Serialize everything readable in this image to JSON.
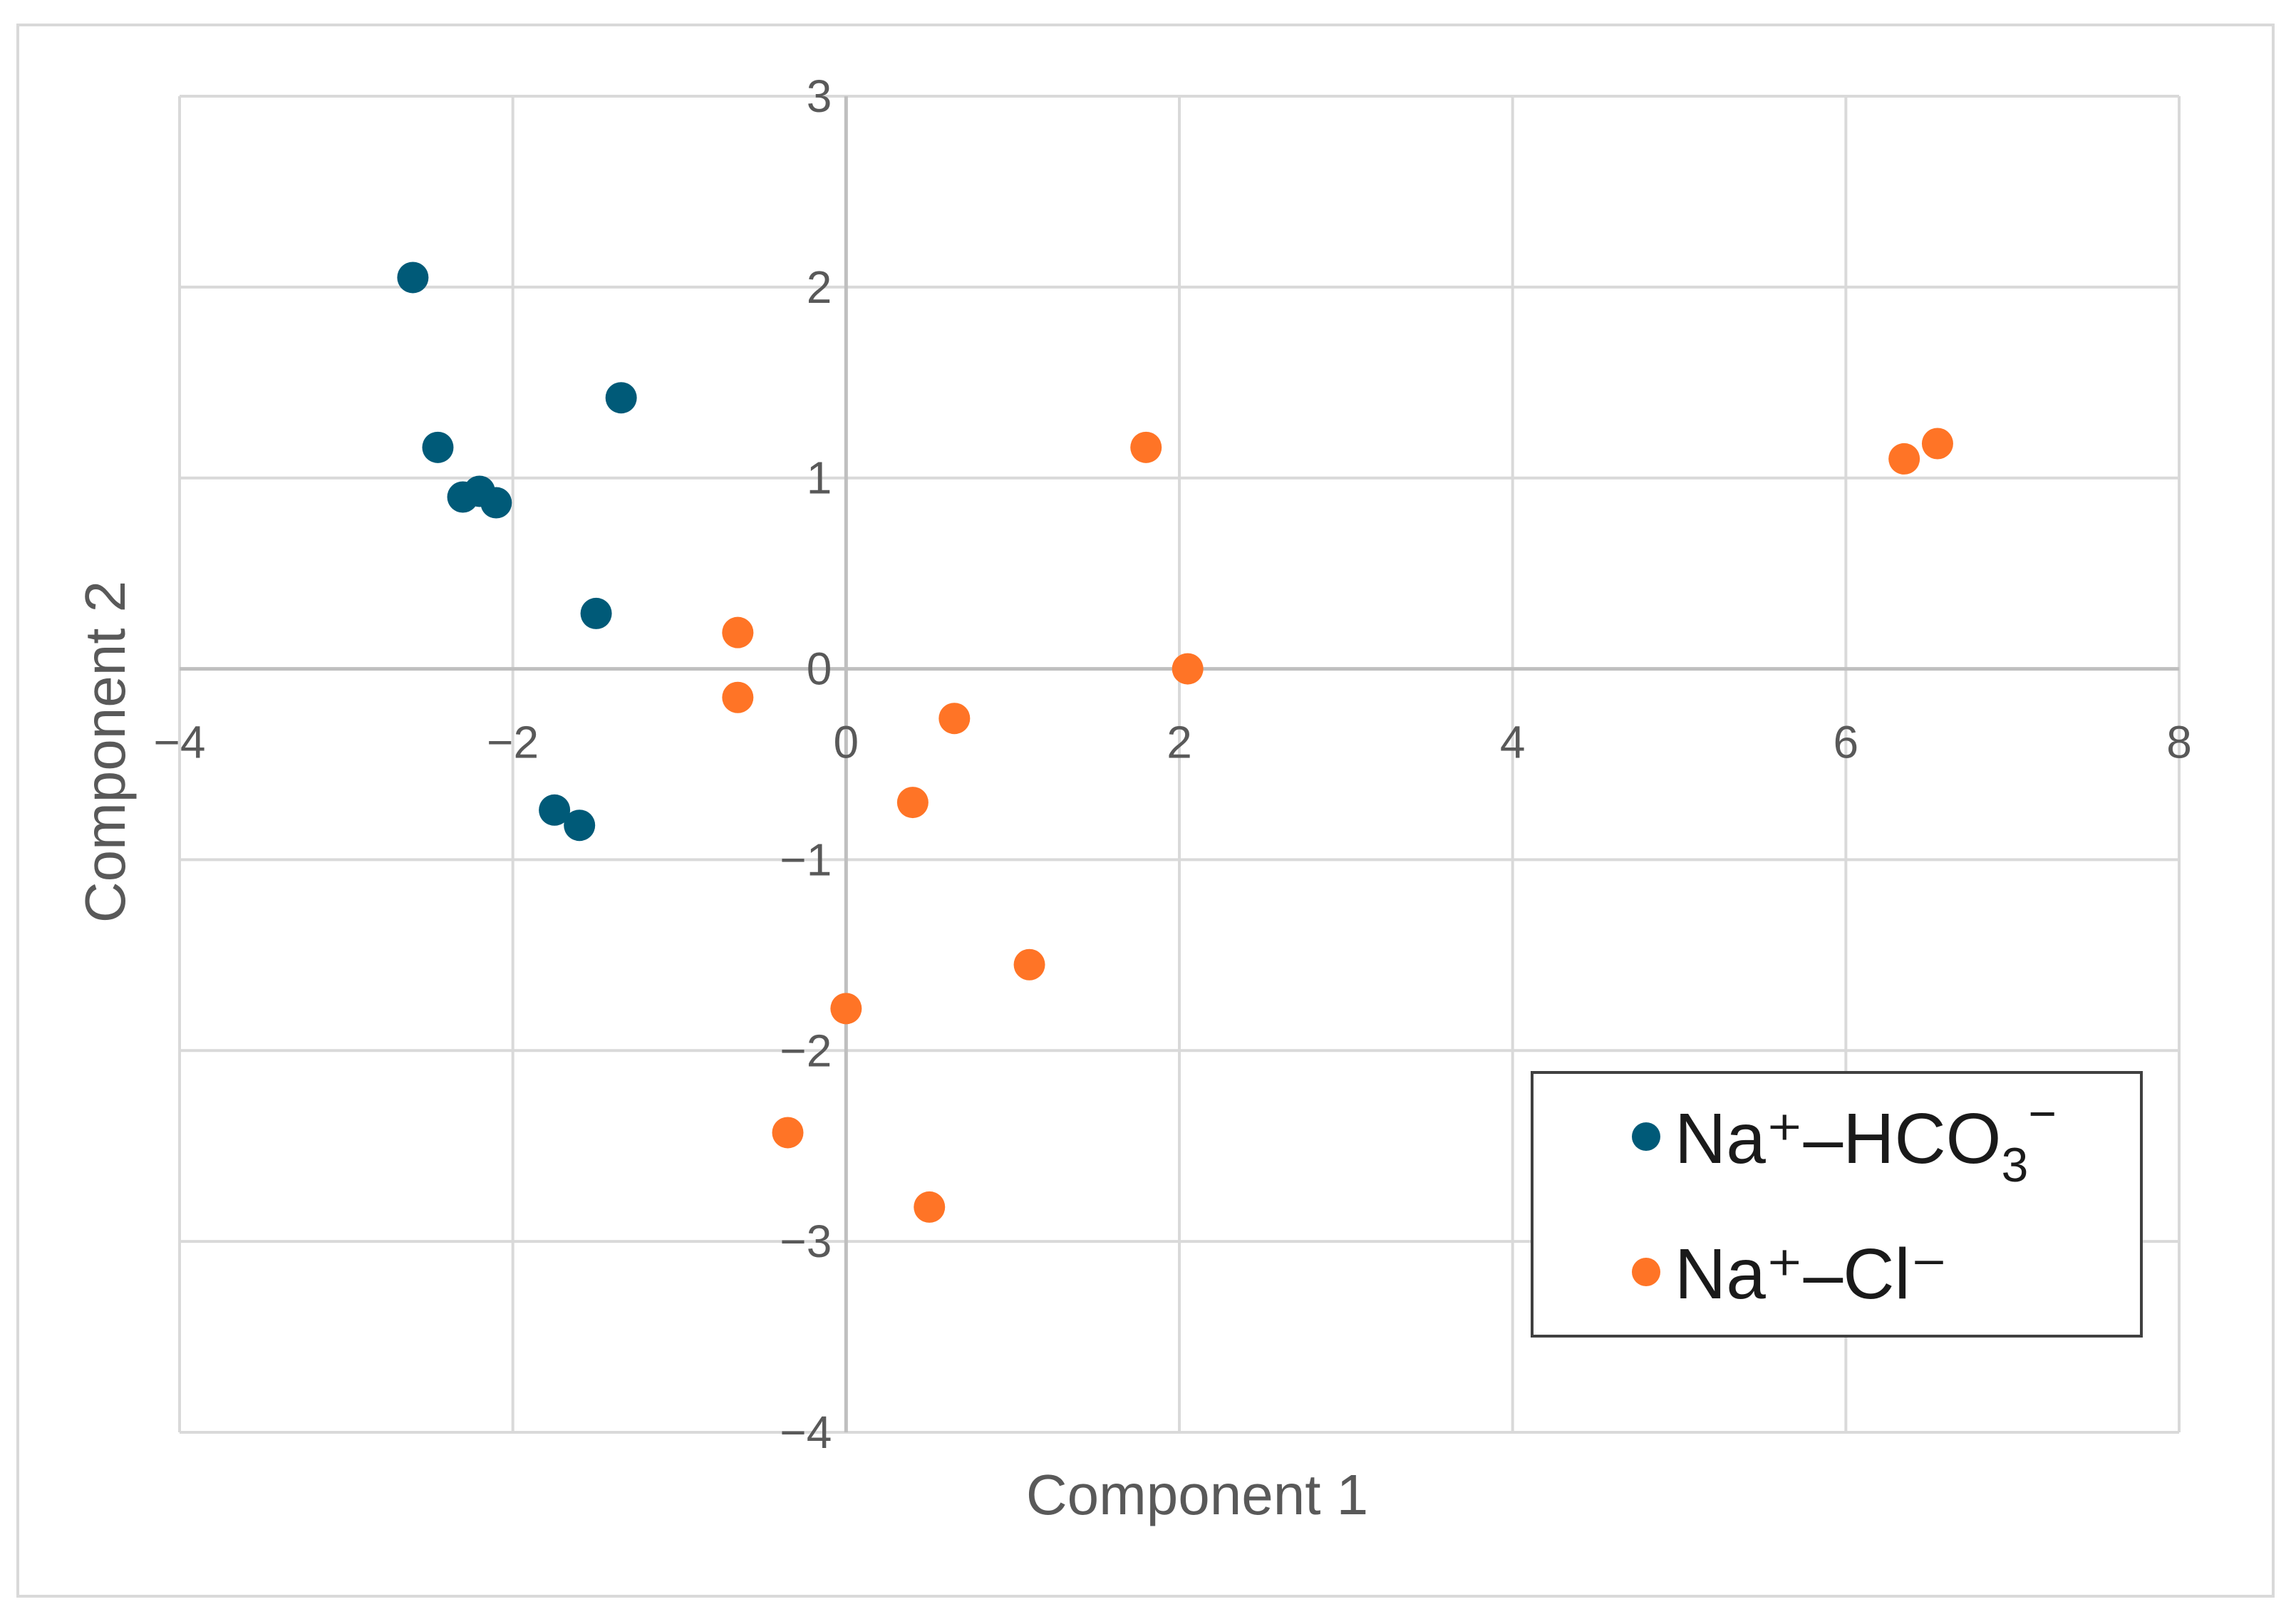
{
  "chart_data": {
    "type": "scatter",
    "xlabel": "Component 1",
    "ylabel": "Component 2",
    "xlim": [
      -4,
      8
    ],
    "ylim": [
      -4,
      3
    ],
    "x_ticks": [
      -4,
      -2,
      0,
      2,
      4,
      6,
      8
    ],
    "y_ticks": [
      -4,
      -3,
      -2,
      -1,
      0,
      1,
      2,
      3
    ],
    "grid": true,
    "legend_position": "bottom-right",
    "series": [
      {
        "label_main": "Na⁺–HCO",
        "label_sub": "3",
        "label_sup": "−",
        "color": "#005a78",
        "points": [
          {
            "x": -2.6,
            "y": 2.05
          },
          {
            "x": -2.45,
            "y": 1.16
          },
          {
            "x": -2.3,
            "y": 0.9
          },
          {
            "x": -2.2,
            "y": 0.93
          },
          {
            "x": -2.1,
            "y": 0.87
          },
          {
            "x": -1.35,
            "y": 1.42
          },
          {
            "x": -1.5,
            "y": 0.29
          },
          {
            "x": -1.75,
            "y": -0.74
          },
          {
            "x": -1.6,
            "y": -0.82
          }
        ]
      },
      {
        "label_main": "Na⁺–Cl⁻",
        "label_sub": "",
        "label_sup": "",
        "color": "#ff7426",
        "points": [
          {
            "x": 1.8,
            "y": 1.16
          },
          {
            "x": 6.35,
            "y": 1.1
          },
          {
            "x": 6.55,
            "y": 1.18
          },
          {
            "x": -0.65,
            "y": 0.19
          },
          {
            "x": -0.65,
            "y": -0.15
          },
          {
            "x": 2.05,
            "y": 0.0
          },
          {
            "x": 0.65,
            "y": -0.26
          },
          {
            "x": 0.4,
            "y": -0.7
          },
          {
            "x": 1.1,
            "y": -1.55
          },
          {
            "x": 0.0,
            "y": -1.78
          },
          {
            "x": -0.35,
            "y": -2.43
          },
          {
            "x": 0.5,
            "y": -2.82
          }
        ]
      }
    ]
  }
}
